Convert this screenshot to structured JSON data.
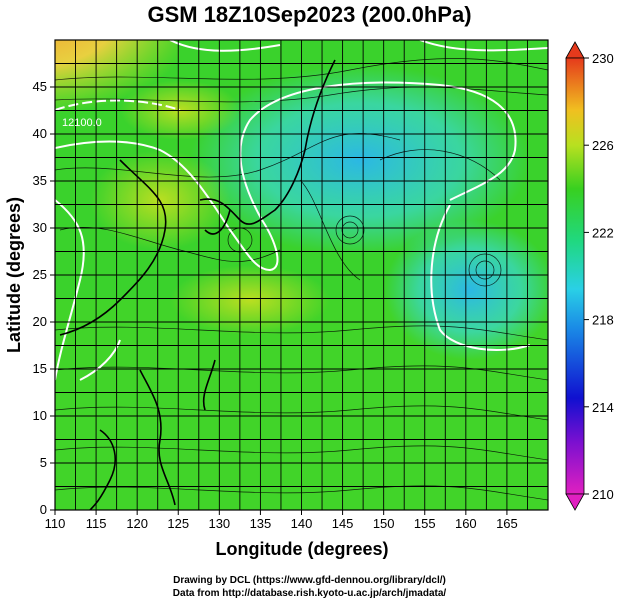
{
  "title": "GSM 18Z10Sep2023 (200.0hPa)",
  "x_axis": {
    "label": "Longitude (degrees)",
    "ticks": [
      "110",
      "115",
      "120",
      "125",
      "130",
      "135",
      "140",
      "145",
      "150",
      "155",
      "160",
      "165"
    ]
  },
  "y_axis": {
    "label": "Latitude  (degrees)",
    "ticks": [
      "0",
      "5",
      "10",
      "15",
      "20",
      "25",
      "30",
      "35",
      "40",
      "45"
    ]
  },
  "colorbar": {
    "ticks": [
      "210",
      "214",
      "218",
      "222",
      "226",
      "230"
    ],
    "colors": [
      "#e020c0",
      "#1010d0",
      "#2ad0e6",
      "#38d020",
      "#e6e020",
      "#e53a1c"
    ]
  },
  "contour_label": "12100.0",
  "credits": {
    "line1": "Drawing by DCL (https://www.gfd-dennou.org/library/dcl/)",
    "line2": "Data from http://database.rish.kyoto-u.ac.jp/arch/jmadata/"
  }
}
